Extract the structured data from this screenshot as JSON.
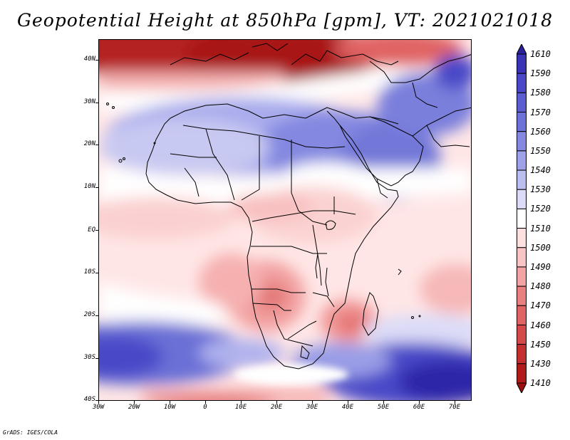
{
  "title": "Geopotential Height at 850hPa [gpm], VT: 2021021018",
  "footer": "GrADS: IGES/COLA",
  "map": {
    "lat_labels": [
      "40N",
      "30N",
      "20N",
      "10N",
      "EQ",
      "10S",
      "20S",
      "30S",
      "40S"
    ],
    "lon_labels": [
      "30W",
      "20W",
      "10W",
      "0",
      "10E",
      "20E",
      "30E",
      "40E",
      "50E",
      "60E",
      "70E"
    ]
  },
  "colorbar": {
    "labels": [
      "1610",
      "1590",
      "1580",
      "1570",
      "1560",
      "1550",
      "1540",
      "1530",
      "1520",
      "1510",
      "1500",
      "1490",
      "1480",
      "1470",
      "1460",
      "1450",
      "1430",
      "1410"
    ],
    "colors": [
      "#2b1f9b",
      "#3a33b8",
      "#4a48c8",
      "#5b5dd0",
      "#6d72d8",
      "#8488e0",
      "#9fa2e8",
      "#bcbef0",
      "#dcdcf8",
      "#ffffff",
      "#fde0e0",
      "#f8c4c4",
      "#f2a4a4",
      "#e98080",
      "#e06464",
      "#d44a4a",
      "#c43030",
      "#b01c1c",
      "#9a1010"
    ]
  }
}
